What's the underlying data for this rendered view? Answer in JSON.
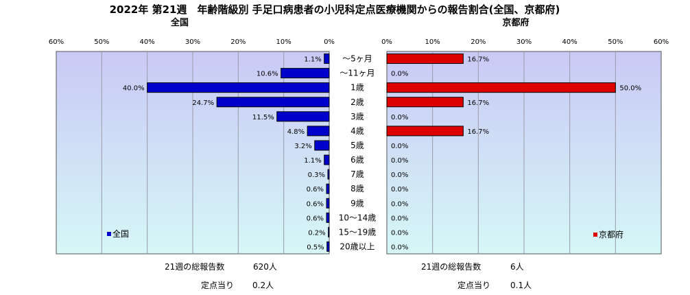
{
  "title": "2022年 第21週　年齢階級別 手足口病患者の小児科定点医療機関からの報告割合(全国、京都府)",
  "categories": [
    "～5ヶ月",
    "～11ヶ月",
    "1歳",
    "2歳",
    "3歳",
    "4歳",
    "5歳",
    "6歳",
    "7歳",
    "8歳",
    "9歳",
    "10～14歳",
    "15～19歳",
    "20歳以上"
  ],
  "colors": {
    "national": "#0000cc",
    "kyoto": "#dd0000",
    "plot_top": "#c9c9f5",
    "plot_bottom": "#d6f7f7"
  },
  "chart_data": [
    {
      "type": "bar",
      "orientation": "horizontal-reversed",
      "title": "全国",
      "categories": [
        "～5ヶ月",
        "～11ヶ月",
        "1歳",
        "2歳",
        "3歳",
        "4歳",
        "5歳",
        "6歳",
        "7歳",
        "8歳",
        "9歳",
        "10～14歳",
        "15～19歳",
        "20歳以上"
      ],
      "series": [
        {
          "name": "全国",
          "values": [
            1.1,
            10.6,
            40.0,
            24.7,
            11.5,
            4.8,
            3.2,
            1.1,
            0.3,
            0.6,
            0.6,
            0.6,
            0.2,
            0.5
          ]
        }
      ],
      "value_labels": [
        "1.1%",
        "10.6%",
        "40.0%",
        "24.7%",
        "11.5%",
        "4.8%",
        "3.2%",
        "1.1%",
        "0.3%",
        "0.6%",
        "0.6%",
        "0.6%",
        "0.2%",
        "0.5%"
      ],
      "xlim": [
        0,
        60
      ],
      "ticks": [
        "60%",
        "50%",
        "40%",
        "30%",
        "20%",
        "10%",
        "0%"
      ],
      "legend_position": "bottom-left",
      "grid": true
    },
    {
      "type": "bar",
      "orientation": "horizontal",
      "title": "京都府",
      "categories": [
        "～5ヶ月",
        "～11ヶ月",
        "1歳",
        "2歳",
        "3歳",
        "4歳",
        "5歳",
        "6歳",
        "7歳",
        "8歳",
        "9歳",
        "10～14歳",
        "15～19歳",
        "20歳以上"
      ],
      "series": [
        {
          "name": "京都府",
          "values": [
            16.7,
            0.0,
            50.0,
            16.7,
            0.0,
            16.7,
            0.0,
            0.0,
            0.0,
            0.0,
            0.0,
            0.0,
            0.0,
            0.0
          ]
        }
      ],
      "value_labels": [
        "16.7%",
        "0.0%",
        "50.0%",
        "16.7%",
        "0.0%",
        "16.7%",
        "0.0%",
        "0.0%",
        "0.0%",
        "0.0%",
        "0.0%",
        "0.0%",
        "0.0%",
        "0.0%"
      ],
      "xlim": [
        0,
        60
      ],
      "ticks": [
        "0%",
        "10%",
        "20%",
        "30%",
        "40%",
        "50%",
        "60%"
      ],
      "legend_position": "bottom-right",
      "grid": true
    }
  ],
  "footer": {
    "national": {
      "total_label": "21週の総報告数",
      "total_value": "620人",
      "per_label": "定点当り",
      "per_value": "0.2人"
    },
    "kyoto": {
      "total_label": "21週の総報告数",
      "total_value": "6人",
      "per_label": "定点当り",
      "per_value": "0.1人"
    }
  }
}
